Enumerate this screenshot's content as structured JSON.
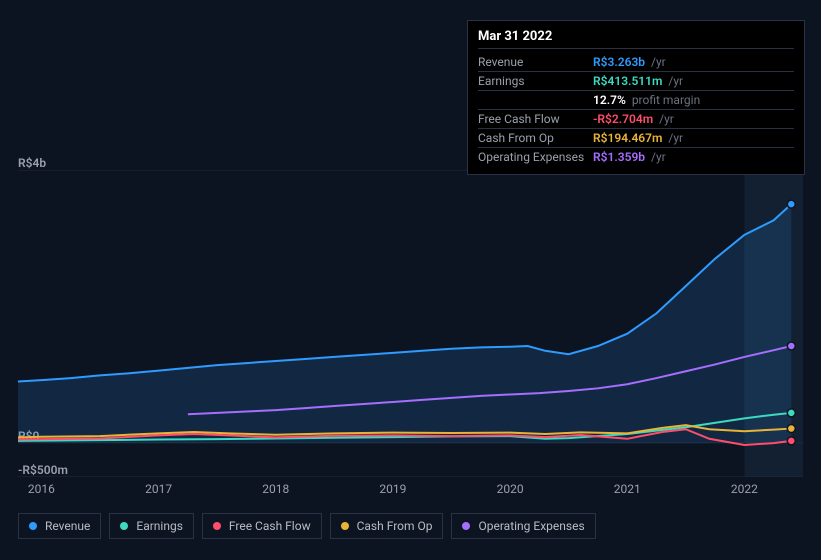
{
  "tooltip": {
    "date": "Mar 31 2022",
    "rows": [
      {
        "label": "Revenue",
        "value": "R$3.263b",
        "suffix": "/yr",
        "color": "#2e9bff"
      },
      {
        "label": "Earnings",
        "value": "R$413.511m",
        "suffix": "/yr",
        "color": "#3dd9c0"
      },
      {
        "label": "",
        "value": "12.7%",
        "suffix": "profit margin",
        "color": "#ffffff"
      },
      {
        "label": "Free Cash Flow",
        "value": "-R$2.704m",
        "suffix": "/yr",
        "color": "#ff4d6a"
      },
      {
        "label": "Cash From Op",
        "value": "R$194.467m",
        "suffix": "/yr",
        "color": "#e8b339"
      },
      {
        "label": "Operating Expenses",
        "value": "R$1.359b",
        "suffix": "/yr",
        "color": "#a56eff"
      }
    ]
  },
  "chart": {
    "type": "line",
    "background_color": "#0d1421",
    "gridline_color": "#1f2a3d",
    "xlim": [
      2015.8,
      2022.5
    ],
    "ylim": [
      -500,
      4000
    ],
    "y_unit": "R$ millions",
    "y_ticks": [
      {
        "v": 4000,
        "label": "R$4b"
      },
      {
        "v": 0,
        "label": "R$0"
      },
      {
        "v": -500,
        "label": "-R$500m"
      }
    ],
    "x_ticks": [
      2016,
      2017,
      2018,
      2019,
      2020,
      2021,
      2022
    ],
    "highlight_from": 2022.0,
    "series": [
      {
        "key": "revenue",
        "name": "Revenue",
        "color": "#2e9bff",
        "area": true,
        "data": [
          [
            2015.8,
            900
          ],
          [
            2016.0,
            920
          ],
          [
            2016.25,
            950
          ],
          [
            2016.5,
            990
          ],
          [
            2016.75,
            1020
          ],
          [
            2017.0,
            1060
          ],
          [
            2017.25,
            1100
          ],
          [
            2017.5,
            1140
          ],
          [
            2017.75,
            1170
          ],
          [
            2018.0,
            1200
          ],
          [
            2018.25,
            1230
          ],
          [
            2018.5,
            1260
          ],
          [
            2018.75,
            1290
          ],
          [
            2019.0,
            1320
          ],
          [
            2019.25,
            1350
          ],
          [
            2019.5,
            1380
          ],
          [
            2019.75,
            1400
          ],
          [
            2020.0,
            1410
          ],
          [
            2020.15,
            1420
          ],
          [
            2020.3,
            1350
          ],
          [
            2020.5,
            1300
          ],
          [
            2020.75,
            1420
          ],
          [
            2021.0,
            1600
          ],
          [
            2021.25,
            1900
          ],
          [
            2021.5,
            2300
          ],
          [
            2021.75,
            2700
          ],
          [
            2022.0,
            3050
          ],
          [
            2022.25,
            3263
          ],
          [
            2022.4,
            3500
          ]
        ]
      },
      {
        "key": "opex",
        "name": "Operating Expenses",
        "color": "#a56eff",
        "area": false,
        "data": [
          [
            2017.25,
            420
          ],
          [
            2017.5,
            440
          ],
          [
            2017.75,
            460
          ],
          [
            2018.0,
            480
          ],
          [
            2018.25,
            510
          ],
          [
            2018.5,
            540
          ],
          [
            2018.75,
            570
          ],
          [
            2019.0,
            600
          ],
          [
            2019.25,
            630
          ],
          [
            2019.5,
            660
          ],
          [
            2019.75,
            690
          ],
          [
            2020.0,
            710
          ],
          [
            2020.25,
            730
          ],
          [
            2020.5,
            760
          ],
          [
            2020.75,
            800
          ],
          [
            2021.0,
            860
          ],
          [
            2021.25,
            950
          ],
          [
            2021.5,
            1050
          ],
          [
            2021.75,
            1150
          ],
          [
            2022.0,
            1260
          ],
          [
            2022.25,
            1359
          ],
          [
            2022.4,
            1420
          ]
        ]
      },
      {
        "key": "earnings",
        "name": "Earnings",
        "color": "#3dd9c0",
        "area": false,
        "data": [
          [
            2015.8,
            30
          ],
          [
            2016.5,
            40
          ],
          [
            2017.0,
            50
          ],
          [
            2017.5,
            55
          ],
          [
            2018.0,
            65
          ],
          [
            2018.5,
            75
          ],
          [
            2019.0,
            85
          ],
          [
            2019.5,
            95
          ],
          [
            2020.0,
            100
          ],
          [
            2020.3,
            60
          ],
          [
            2020.5,
            70
          ],
          [
            2021.0,
            130
          ],
          [
            2021.5,
            230
          ],
          [
            2022.0,
            360
          ],
          [
            2022.25,
            413
          ],
          [
            2022.4,
            440
          ]
        ]
      },
      {
        "key": "cfo",
        "name": "Cash From Op",
        "color": "#e8b339",
        "area": false,
        "data": [
          [
            2015.8,
            80
          ],
          [
            2016.0,
            90
          ],
          [
            2016.5,
            100
          ],
          [
            2017.0,
            140
          ],
          [
            2017.3,
            160
          ],
          [
            2017.6,
            140
          ],
          [
            2018.0,
            120
          ],
          [
            2018.5,
            140
          ],
          [
            2019.0,
            150
          ],
          [
            2019.5,
            145
          ],
          [
            2020.0,
            150
          ],
          [
            2020.3,
            130
          ],
          [
            2020.6,
            155
          ],
          [
            2021.0,
            140
          ],
          [
            2021.3,
            220
          ],
          [
            2021.5,
            260
          ],
          [
            2021.7,
            200
          ],
          [
            2022.0,
            170
          ],
          [
            2022.25,
            194
          ],
          [
            2022.4,
            210
          ]
        ]
      },
      {
        "key": "fcf",
        "name": "Free Cash Flow",
        "color": "#ff4d6a",
        "area": false,
        "data": [
          [
            2015.8,
            50
          ],
          [
            2016.0,
            55
          ],
          [
            2016.5,
            65
          ],
          [
            2017.0,
            110
          ],
          [
            2017.3,
            130
          ],
          [
            2017.6,
            110
          ],
          [
            2018.0,
            80
          ],
          [
            2018.5,
            105
          ],
          [
            2019.0,
            110
          ],
          [
            2019.5,
            100
          ],
          [
            2020.0,
            110
          ],
          [
            2020.3,
            85
          ],
          [
            2020.6,
            115
          ],
          [
            2021.0,
            60
          ],
          [
            2021.3,
            160
          ],
          [
            2021.5,
            200
          ],
          [
            2021.7,
            60
          ],
          [
            2022.0,
            -30
          ],
          [
            2022.25,
            -3
          ],
          [
            2022.4,
            30
          ]
        ]
      }
    ]
  },
  "legend": {
    "items": [
      {
        "key": "revenue",
        "label": "Revenue",
        "color": "#2e9bff"
      },
      {
        "key": "earnings",
        "label": "Earnings",
        "color": "#3dd9c0"
      },
      {
        "key": "fcf",
        "label": "Free Cash Flow",
        "color": "#ff4d6a"
      },
      {
        "key": "cfo",
        "label": "Cash From Op",
        "color": "#e8b339"
      },
      {
        "key": "opex",
        "label": "Operating Expenses",
        "color": "#a56eff"
      }
    ]
  }
}
